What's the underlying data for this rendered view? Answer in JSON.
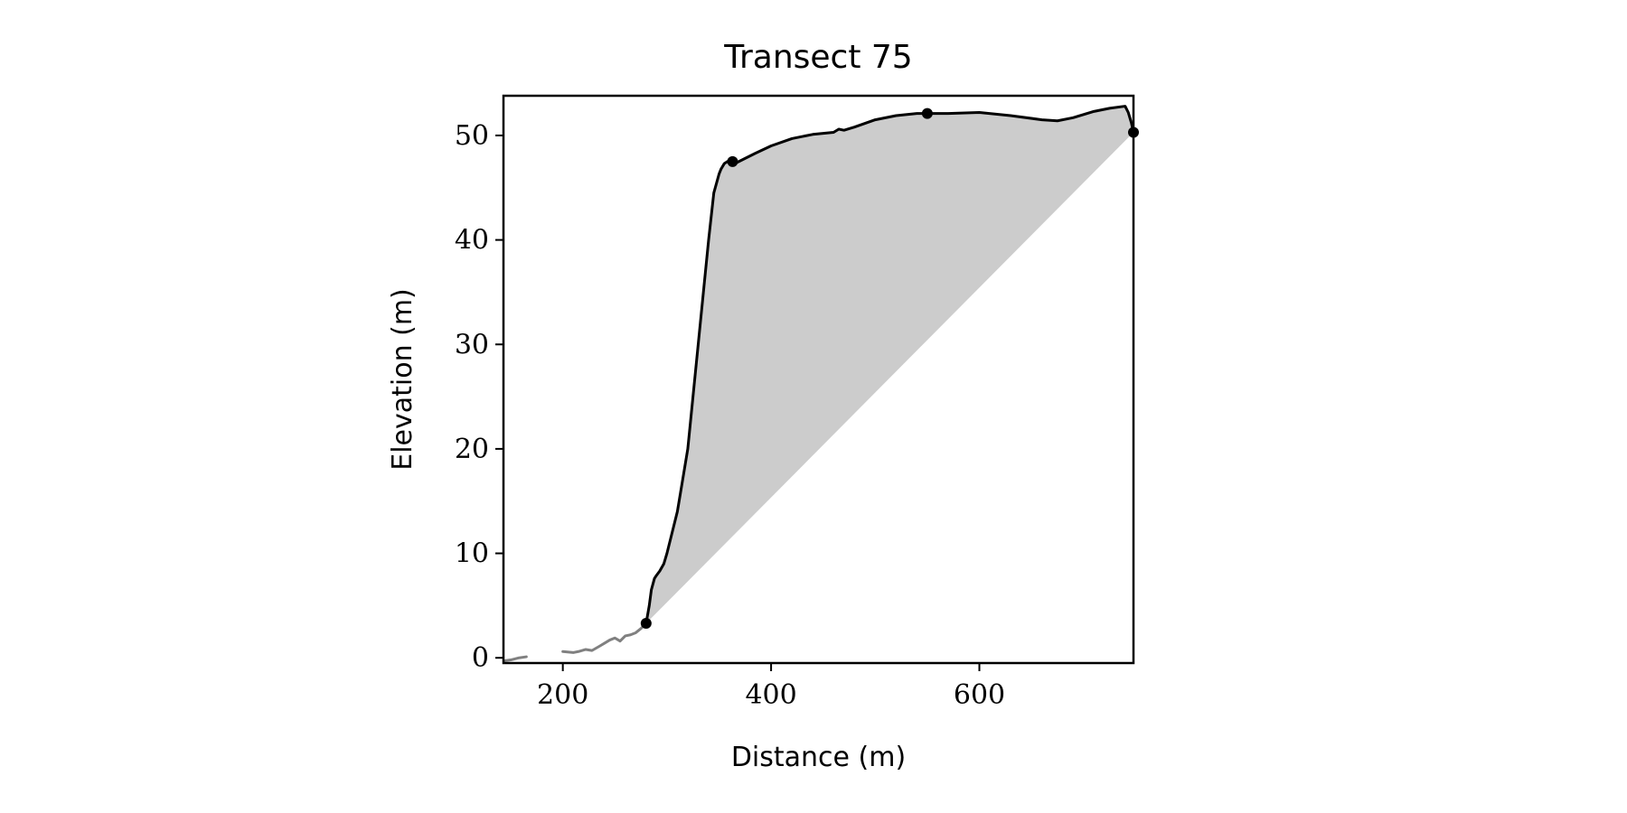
{
  "chart_data": {
    "type": "line",
    "title": "Transect 75",
    "xlabel": "Distance (m)",
    "ylabel": "Elevation (m)",
    "xlim": [
      143,
      748
    ],
    "ylim": [
      -0.5,
      53.8
    ],
    "xticks": [
      200,
      400,
      600
    ],
    "yticks": [
      0,
      10,
      20,
      30,
      40,
      50
    ],
    "grid": false,
    "colors": {
      "profile": "#000000",
      "outside_profile": "#808080",
      "area_fill": "#cccccc",
      "markers": "#000000"
    },
    "series": [
      {
        "role": "outside-left",
        "x": [
          143,
          150,
          158,
          165
        ],
        "y": [
          -0.3,
          -0.2,
          0.0,
          0.1
        ]
      },
      {
        "role": "outside-left",
        "x": [
          200,
          210,
          215,
          222,
          228,
          235,
          240,
          245,
          250,
          255,
          260,
          265,
          270,
          275,
          280
        ],
        "y": [
          0.6,
          0.5,
          0.6,
          0.8,
          0.7,
          1.1,
          1.4,
          1.7,
          1.9,
          1.6,
          2.1,
          2.2,
          2.4,
          2.8,
          3.3
        ]
      },
      {
        "role": "profile",
        "x": [
          280,
          283,
          285,
          288,
          290,
          293,
          297,
          300,
          305,
          310,
          315,
          320,
          325,
          330,
          335,
          340,
          345,
          350,
          352,
          355,
          358,
          362,
          367,
          375,
          385,
          400,
          420,
          440,
          460,
          465,
          470,
          480,
          500,
          520,
          540,
          550,
          570,
          600,
          630,
          660,
          675,
          690,
          710,
          725,
          740,
          743,
          746,
          748
        ],
        "y": [
          3.3,
          5.0,
          6.5,
          7.6,
          7.9,
          8.3,
          9.0,
          10.0,
          12.0,
          14.0,
          17.0,
          20.0,
          25.0,
          30.0,
          35.0,
          40.0,
          44.5,
          46.3,
          46.8,
          47.3,
          47.5,
          47.6,
          47.4,
          47.8,
          48.3,
          49.0,
          49.7,
          50.1,
          50.3,
          50.6,
          50.5,
          50.8,
          51.5,
          51.9,
          52.1,
          52.1,
          52.1,
          52.2,
          51.9,
          51.5,
          51.4,
          51.7,
          52.3,
          52.6,
          52.8,
          52.2,
          51.2,
          50.3
        ]
      }
    ],
    "fill_region": {
      "upper": "profile",
      "lower_line": {
        "x": [
          280,
          748
        ],
        "y": [
          3.3,
          50.3
        ]
      }
    },
    "markers": {
      "x": [
        280,
        363,
        550,
        748
      ],
      "y": [
        3.3,
        47.5,
        52.1,
        50.3
      ]
    }
  }
}
